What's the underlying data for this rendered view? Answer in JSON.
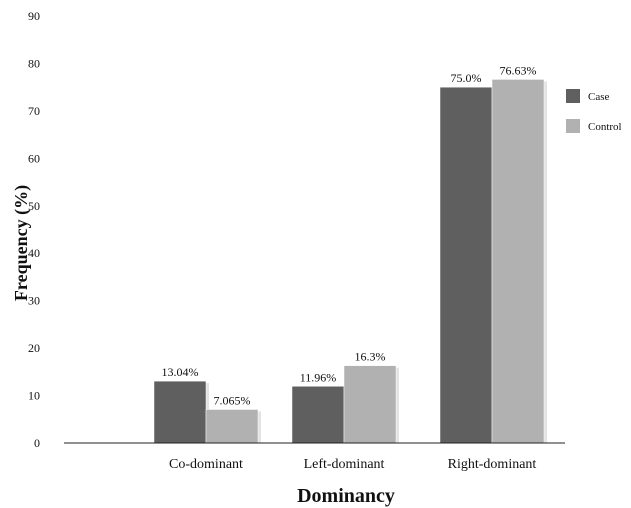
{
  "chart_data": {
    "type": "bar",
    "title": "",
    "xlabel": "Dominancy",
    "ylabel": "Frequency (%)",
    "ylim": [
      0,
      90
    ],
    "yticks": [
      0,
      10,
      20,
      30,
      40,
      50,
      60,
      70,
      80,
      90
    ],
    "grid": false,
    "legend_position": "right",
    "categories": [
      "Co-dominant",
      "Left-dominant",
      "Right-dominant"
    ],
    "series": [
      {
        "name": "Case",
        "color": "#5f5f5f",
        "values": [
          13.04,
          11.96,
          75.0
        ],
        "labels": [
          "13.04%",
          "11.96%",
          "75.0%"
        ]
      },
      {
        "name": "Control",
        "color": "#b1b1b1",
        "values": [
          7.065,
          16.3,
          76.63
        ],
        "labels": [
          "7.065%",
          "16.3%",
          "76.63%"
        ]
      }
    ]
  }
}
